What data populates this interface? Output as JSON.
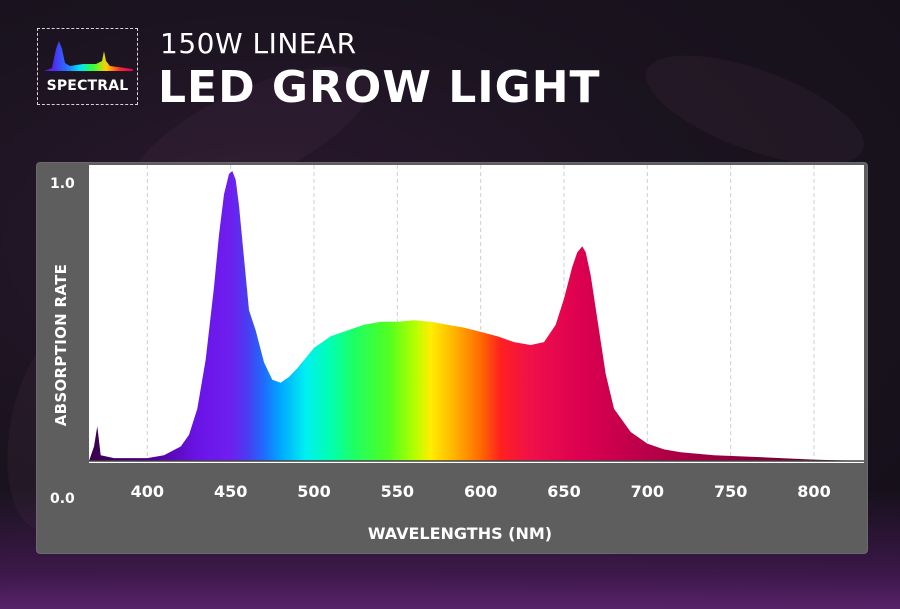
{
  "header": {
    "logo_text": "SPECTRAL",
    "subtitle": "150W LINEAR",
    "title": "LED GROW LIGHT"
  },
  "colors": {
    "background": "#1b1420",
    "panel": "#5e5e5e",
    "plot_background": "#ffffff",
    "text": "#ffffff"
  },
  "chart_data": {
    "type": "area",
    "title": "LED GROW LIGHT",
    "xlabel": "WAVELENGTHS (NM)",
    "ylabel": "ABSORPTION RATE",
    "xlim": [
      365,
      830
    ],
    "ylim": [
      0.0,
      1.0
    ],
    "x_ticks": [
      "400",
      "450",
      "500",
      "550",
      "600",
      "650",
      "700",
      "750",
      "800"
    ],
    "y_ticks": [
      "0.0",
      "1.0"
    ],
    "grid": "vertical dashed",
    "fill": "visible-spectrum gradient",
    "x": [
      365,
      368,
      370,
      372,
      380,
      400,
      410,
      420,
      425,
      430,
      435,
      440,
      443,
      446,
      449,
      451,
      453,
      455,
      458,
      461,
      465,
      470,
      475,
      480,
      485,
      490,
      500,
      510,
      520,
      530,
      540,
      550,
      560,
      570,
      580,
      590,
      600,
      610,
      620,
      630,
      638,
      645,
      650,
      655,
      658,
      661,
      663,
      666,
      670,
      675,
      680,
      690,
      700,
      710,
      720,
      740,
      760,
      780,
      800,
      830
    ],
    "y": [
      0.0,
      0.05,
      0.12,
      0.02,
      0.01,
      0.01,
      0.02,
      0.05,
      0.09,
      0.18,
      0.35,
      0.6,
      0.78,
      0.92,
      0.99,
      1.0,
      0.97,
      0.88,
      0.7,
      0.52,
      0.45,
      0.34,
      0.28,
      0.27,
      0.29,
      0.32,
      0.39,
      0.43,
      0.45,
      0.47,
      0.48,
      0.48,
      0.485,
      0.48,
      0.47,
      0.46,
      0.445,
      0.43,
      0.41,
      0.4,
      0.41,
      0.47,
      0.56,
      0.67,
      0.72,
      0.74,
      0.72,
      0.64,
      0.49,
      0.3,
      0.18,
      0.1,
      0.06,
      0.04,
      0.03,
      0.02,
      0.015,
      0.01,
      0.005,
      0.0
    ]
  }
}
